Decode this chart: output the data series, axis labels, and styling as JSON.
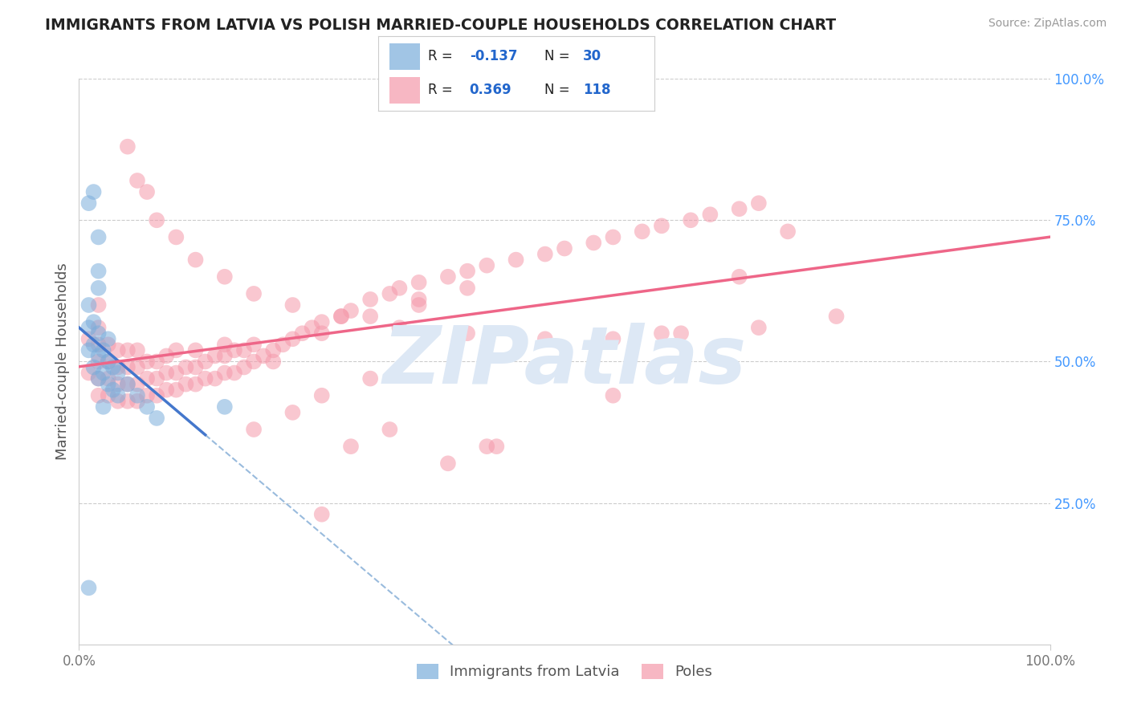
{
  "title": "IMMIGRANTS FROM LATVIA VS POLISH MARRIED-COUPLE HOUSEHOLDS CORRELATION CHART",
  "source": "Source: ZipAtlas.com",
  "ylabel": "Married-couple Households",
  "legend_labels": [
    "Immigrants from Latvia",
    "Poles"
  ],
  "blue_R": -0.137,
  "blue_N": 30,
  "pink_R": 0.369,
  "pink_N": 118,
  "xlim": [
    0.0,
    1.0
  ],
  "ylim": [
    0.0,
    1.0
  ],
  "grid_color": "#cccccc",
  "background_color": "#ffffff",
  "blue_color": "#7aaddb",
  "pink_color": "#f599aa",
  "blue_line_color": "#4477cc",
  "pink_line_color": "#ee6688",
  "dashed_line_color": "#99bbdd",
  "watermark_color": "#dde8f5",
  "blue_scatter_x": [
    0.01,
    0.01,
    0.01,
    0.015,
    0.015,
    0.015,
    0.02,
    0.02,
    0.02,
    0.02,
    0.025,
    0.025,
    0.03,
    0.03,
    0.03,
    0.035,
    0.035,
    0.04,
    0.04,
    0.05,
    0.06,
    0.07,
    0.08,
    0.02,
    0.02,
    0.01,
    0.015,
    0.025,
    0.15,
    0.01
  ],
  "blue_scatter_y": [
    0.52,
    0.56,
    0.6,
    0.49,
    0.53,
    0.57,
    0.47,
    0.51,
    0.55,
    0.63,
    0.48,
    0.52,
    0.46,
    0.5,
    0.54,
    0.45,
    0.49,
    0.44,
    0.48,
    0.46,
    0.44,
    0.42,
    0.4,
    0.66,
    0.72,
    0.78,
    0.8,
    0.42,
    0.42,
    0.1
  ],
  "pink_scatter_x": [
    0.01,
    0.01,
    0.02,
    0.02,
    0.02,
    0.02,
    0.02,
    0.02,
    0.03,
    0.03,
    0.03,
    0.03,
    0.04,
    0.04,
    0.04,
    0.04,
    0.05,
    0.05,
    0.05,
    0.05,
    0.06,
    0.06,
    0.06,
    0.06,
    0.07,
    0.07,
    0.07,
    0.08,
    0.08,
    0.08,
    0.09,
    0.09,
    0.09,
    0.1,
    0.1,
    0.1,
    0.11,
    0.11,
    0.12,
    0.12,
    0.12,
    0.13,
    0.13,
    0.14,
    0.14,
    0.15,
    0.15,
    0.16,
    0.16,
    0.17,
    0.17,
    0.18,
    0.18,
    0.19,
    0.2,
    0.21,
    0.22,
    0.23,
    0.24,
    0.25,
    0.27,
    0.28,
    0.3,
    0.32,
    0.33,
    0.35,
    0.38,
    0.4,
    0.42,
    0.45,
    0.48,
    0.5,
    0.53,
    0.55,
    0.58,
    0.6,
    0.63,
    0.65,
    0.68,
    0.7,
    0.25,
    0.3,
    0.35,
    0.2,
    0.15,
    0.25,
    0.3,
    0.35,
    0.4,
    0.18,
    0.22,
    0.28,
    0.32,
    0.38,
    0.42,
    0.05,
    0.06,
    0.07,
    0.08,
    0.1,
    0.12,
    0.15,
    0.18,
    0.22,
    0.27,
    0.33,
    0.4,
    0.48,
    0.55,
    0.62,
    0.7,
    0.78,
    0.25,
    0.43,
    0.55,
    0.6,
    0.68,
    0.73
  ],
  "pink_scatter_y": [
    0.48,
    0.54,
    0.44,
    0.47,
    0.5,
    0.53,
    0.56,
    0.6,
    0.44,
    0.47,
    0.5,
    0.53,
    0.43,
    0.46,
    0.49,
    0.52,
    0.43,
    0.46,
    0.49,
    0.52,
    0.43,
    0.46,
    0.49,
    0.52,
    0.44,
    0.47,
    0.5,
    0.44,
    0.47,
    0.5,
    0.45,
    0.48,
    0.51,
    0.45,
    0.48,
    0.52,
    0.46,
    0.49,
    0.46,
    0.49,
    0.52,
    0.47,
    0.5,
    0.47,
    0.51,
    0.48,
    0.51,
    0.48,
    0.52,
    0.49,
    0.52,
    0.5,
    0.53,
    0.51,
    0.52,
    0.53,
    0.54,
    0.55,
    0.56,
    0.57,
    0.58,
    0.59,
    0.61,
    0.62,
    0.63,
    0.64,
    0.65,
    0.66,
    0.67,
    0.68,
    0.69,
    0.7,
    0.71,
    0.72,
    0.73,
    0.74,
    0.75,
    0.76,
    0.77,
    0.78,
    0.55,
    0.58,
    0.61,
    0.5,
    0.53,
    0.44,
    0.47,
    0.6,
    0.63,
    0.38,
    0.41,
    0.35,
    0.38,
    0.32,
    0.35,
    0.88,
    0.82,
    0.8,
    0.75,
    0.72,
    0.68,
    0.65,
    0.62,
    0.6,
    0.58,
    0.56,
    0.55,
    0.54,
    0.54,
    0.55,
    0.56,
    0.58,
    0.23,
    0.35,
    0.44,
    0.55,
    0.65,
    0.73
  ]
}
